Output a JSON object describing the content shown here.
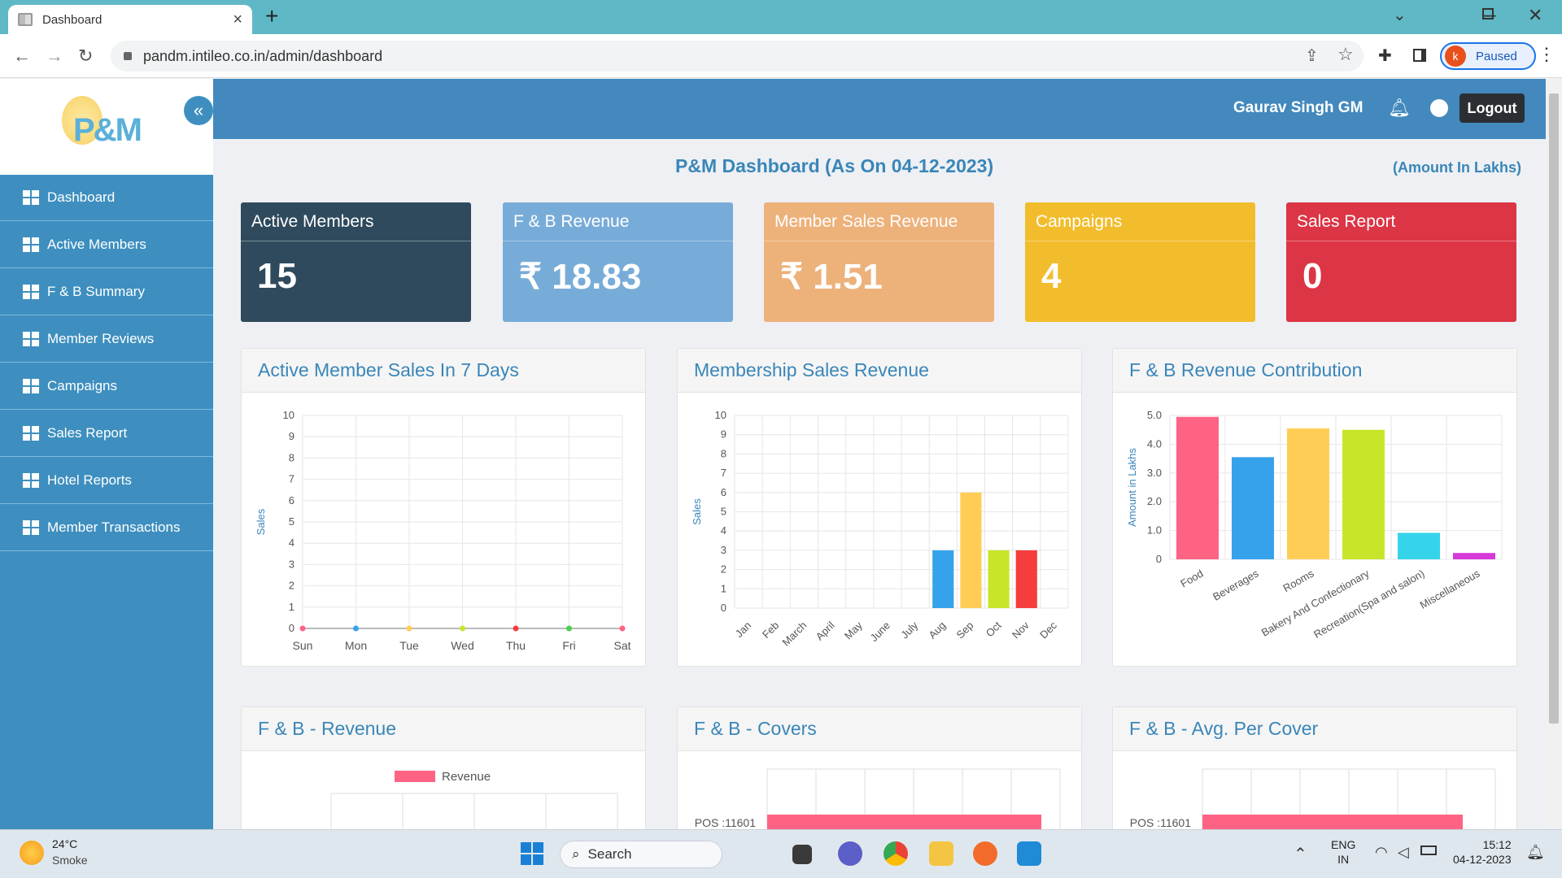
{
  "browser": {
    "tab_title": "Dashboard",
    "url": "pandm.intileo.co.in/admin/dashboard",
    "profile_initial": "k",
    "profile_status": "Paused"
  },
  "sidebar": {
    "logo_text": "P&M",
    "items": [
      {
        "label": "Dashboard"
      },
      {
        "label": "Active Members"
      },
      {
        "label": "F & B Summary"
      },
      {
        "label": "Member Reviews"
      },
      {
        "label": "Campaigns"
      },
      {
        "label": "Sales Report"
      },
      {
        "label": "Hotel Reports"
      },
      {
        "label": "Member Transactions"
      }
    ]
  },
  "header": {
    "user_name": "Gaurav Singh GM",
    "logout_label": "Logout"
  },
  "dashboard": {
    "title": "P&M Dashboard (As On 04-12-2023)",
    "amount_note": "(Amount In Lakhs)"
  },
  "kpis": [
    {
      "label": "Active Members",
      "value": "15",
      "color": "#2f4a5d"
    },
    {
      "label": "F & B Revenue",
      "value": "₹ 18.83",
      "color": "#78acd8"
    },
    {
      "label": "Member Sales Revenue",
      "value": "₹ 1.51",
      "color": "#edb17a"
    },
    {
      "label": "Campaigns",
      "value": "4",
      "color": "#f2bd2c"
    },
    {
      "label": "Sales Report",
      "value": "0",
      "color": "#dc3545"
    }
  ],
  "panels": {
    "active_sales": "Active Member Sales In 7 Days",
    "membership_revenue": "Membership Sales Revenue",
    "fb_contribution": "F & B Revenue Contribution",
    "fb_revenue": "F & B - Revenue",
    "fb_covers": "F & B - Covers",
    "fb_avg": "F & B - Avg. Per Cover"
  },
  "chart_data": [
    {
      "type": "line",
      "title": "Active Member Sales In 7 Days",
      "ylabel": "Sales",
      "categories": [
        "Sun",
        "Mon",
        "Tue",
        "Wed",
        "Thu",
        "Fri",
        "Sat"
      ],
      "values": [
        0,
        0,
        0,
        0,
        0,
        0,
        0
      ],
      "point_colors": [
        "#ff6384",
        "#36a2eb",
        "#ffcd56",
        "#c9e52a",
        "#f53d3d",
        "#4bd04b",
        "#ff6384"
      ],
      "ylim": [
        0,
        10
      ],
      "yticks": [
        "0",
        "1",
        "2",
        "3",
        "4",
        "5",
        "6",
        "7",
        "8",
        "9",
        "10"
      ]
    },
    {
      "type": "bar",
      "title": "Membership Sales Revenue",
      "ylabel": "Sales",
      "categories": [
        "Jan",
        "Feb",
        "March",
        "April",
        "May",
        "June",
        "July",
        "Aug",
        "Sep",
        "Oct",
        "Nov",
        "Dec"
      ],
      "values": [
        0,
        0,
        0,
        0,
        0,
        0,
        0,
        3,
        6,
        3,
        3,
        0
      ],
      "colors": [
        "#36a2eb",
        "#36a2eb",
        "#36a2eb",
        "#36a2eb",
        "#36a2eb",
        "#36a2eb",
        "#36a2eb",
        "#36a2eb",
        "#ffcd56",
        "#c9e52a",
        "#f53d3d",
        "#36a2eb"
      ],
      "ylim": [
        0,
        10
      ],
      "yticks": [
        "0",
        "1",
        "2",
        "3",
        "4",
        "5",
        "6",
        "7",
        "8",
        "9",
        "10"
      ]
    },
    {
      "type": "bar",
      "title": "F & B Revenue Contribution",
      "ylabel": "Amount in Lakhs",
      "categories": [
        "Food",
        "Beverages",
        "Rooms",
        "Bakery And Confectionary",
        "Recreation(Spa and salon)",
        "Miscellaneous"
      ],
      "values": [
        4.95,
        3.55,
        4.55,
        4.5,
        0.92,
        0.22
      ],
      "colors": [
        "#ff6384",
        "#36a2eb",
        "#ffcd56",
        "#c9e52a",
        "#36d4ea",
        "#d63ad8"
      ],
      "ylim": [
        0,
        5
      ],
      "yticks": [
        "0",
        "1.0",
        "2.0",
        "3.0",
        "4.0",
        "5.0"
      ]
    },
    {
      "type": "bar",
      "title": "F & B - Revenue",
      "legend": [
        "Revenue"
      ],
      "legend_color": "#ff6384"
    },
    {
      "type": "bar",
      "title": "F & B - Covers",
      "categories": [
        "POS :11601"
      ],
      "bar_color": "#ff6384"
    },
    {
      "type": "bar",
      "title": "F & B - Avg. Per Cover",
      "categories": [
        "POS :11601"
      ],
      "bar_color": "#ff6384"
    }
  ],
  "taskbar": {
    "temperature": "24°C",
    "condition": "Smoke",
    "search_label": "Search",
    "lang_line1": "ENG",
    "lang_line2": "IN",
    "time": "15:12",
    "date": "04-12-2023"
  }
}
